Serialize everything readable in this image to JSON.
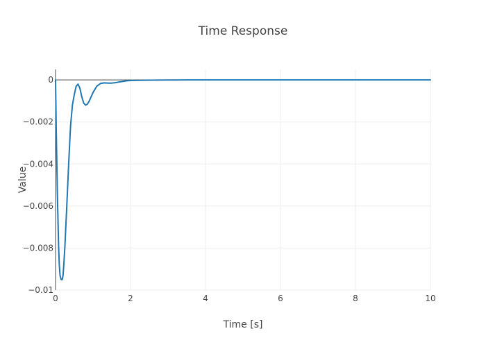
{
  "chart_data": {
    "type": "line",
    "title": "Time Response",
    "xlabel": "Time [s]",
    "ylabel": "Value",
    "xlim": [
      0,
      10
    ],
    "ylim": [
      -0.01,
      0.0005
    ],
    "x_ticks": [
      0,
      2,
      4,
      6,
      8,
      10
    ],
    "x_tick_labels": [
      "0",
      "2",
      "4",
      "6",
      "8",
      "10"
    ],
    "y_ticks": [
      0,
      -0.002,
      -0.004,
      -0.006,
      -0.008,
      -0.01
    ],
    "y_tick_labels": [
      "0",
      "−0.002",
      "−0.004",
      "−0.006",
      "−0.008",
      "−0.01"
    ],
    "grid": true,
    "colors": {
      "line": "#1f77b4",
      "grid": "#eeeeee",
      "zeroline": "#444444",
      "text": "#444444"
    },
    "series": [
      {
        "x": [
          0,
          0.02,
          0.05,
          0.08,
          0.1,
          0.12,
          0.15,
          0.18,
          0.2,
          0.22,
          0.25,
          0.3,
          0.35,
          0.4,
          0.45,
          0.5,
          0.55,
          0.6,
          0.65,
          0.7,
          0.75,
          0.8,
          0.85,
          0.9,
          0.95,
          1.0,
          1.1,
          1.2,
          1.3,
          1.4,
          1.5,
          1.6,
          1.7,
          1.8,
          1.9,
          2.0,
          2.2,
          2.5,
          3.0,
          3.5,
          4,
          5,
          6,
          7,
          8,
          9,
          10
        ],
        "y": [
          0,
          -0.0025,
          -0.0055,
          -0.0078,
          -0.0088,
          -0.0093,
          -0.0095,
          -0.0095,
          -0.0093,
          -0.0088,
          -0.0079,
          -0.006,
          -0.004,
          -0.0022,
          -0.0012,
          -0.0007,
          -0.0003,
          -0.0002,
          -0.0004,
          -0.0008,
          -0.0011,
          -0.0012,
          -0.00115,
          -0.001,
          -0.0008,
          -0.0006,
          -0.0003,
          -0.00017,
          -0.00014,
          -0.00015,
          -0.00015,
          -0.00013,
          -0.0001,
          -7e-05,
          -4e-05,
          -3e-05,
          -2e-05,
          -1e-05,
          -5e-06,
          0,
          0,
          0,
          0,
          0,
          0,
          0,
          0
        ]
      }
    ]
  }
}
